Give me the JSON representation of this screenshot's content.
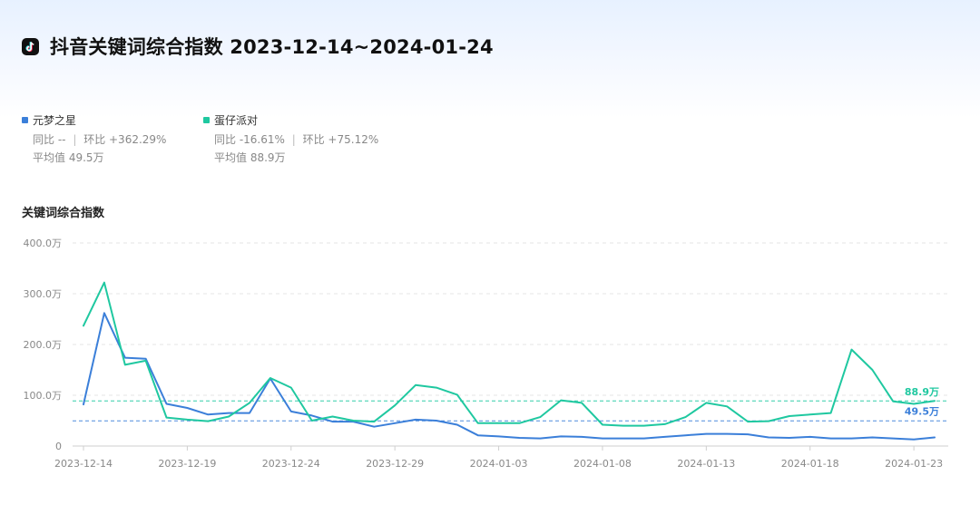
{
  "header": {
    "icon": "tiktok-logo-icon",
    "title": "抖音关键词综合指数 2023-12-14~2024-01-24"
  },
  "legend": [
    {
      "name": "元梦之星",
      "color": "#3b7fd9",
      "yoy": "同比 --",
      "mom": "环比 +362.29%",
      "avg": "平均值 49.5万"
    },
    {
      "name": "蛋仔派对",
      "color": "#1fc8a0",
      "yoy": "同比 -16.61%",
      "mom": "环比 +75.12%",
      "avg": "平均值 88.9万"
    }
  ],
  "chart_title": "关键词综合指数",
  "chart_data": {
    "type": "line",
    "ylim": [
      0,
      400
    ],
    "y_unit": "万",
    "y_ticks": [
      0,
      100,
      200,
      300,
      400
    ],
    "y_tick_labels": [
      "0",
      "100.0万",
      "200.0万",
      "300.0万",
      "400.0万"
    ],
    "x_tick_labels": [
      "2023-12-14",
      "2023-12-19",
      "2023-12-24",
      "2023-12-29",
      "2024-01-03",
      "2024-01-08",
      "2024-01-13",
      "2024-01-18",
      "2024-01-23"
    ],
    "x": [
      "2023-12-14",
      "2023-12-15",
      "2023-12-16",
      "2023-12-17",
      "2023-12-18",
      "2023-12-19",
      "2023-12-20",
      "2023-12-21",
      "2023-12-22",
      "2023-12-23",
      "2023-12-24",
      "2023-12-25",
      "2023-12-26",
      "2023-12-27",
      "2023-12-28",
      "2023-12-29",
      "2023-12-30",
      "2023-12-31",
      "2024-01-01",
      "2024-01-02",
      "2024-01-03",
      "2024-01-04",
      "2024-01-05",
      "2024-01-06",
      "2024-01-07",
      "2024-01-08",
      "2024-01-09",
      "2024-01-10",
      "2024-01-11",
      "2024-01-12",
      "2024-01-13",
      "2024-01-14",
      "2024-01-15",
      "2024-01-16",
      "2024-01-17",
      "2024-01-18",
      "2024-01-19",
      "2024-01-20",
      "2024-01-21",
      "2024-01-22",
      "2024-01-23",
      "2024-01-24"
    ],
    "series": [
      {
        "name": "元梦之星",
        "color": "#3b7fd9",
        "values": [
          82,
          262,
          174,
          172,
          83,
          75,
          62,
          65,
          65,
          133,
          68,
          60,
          48,
          48,
          38,
          45,
          52,
          50,
          42,
          21,
          19,
          16,
          15,
          19,
          18,
          15,
          15,
          15,
          18,
          21,
          24,
          24,
          23,
          17,
          16,
          18,
          15,
          15,
          17,
          15,
          13,
          17
        ],
        "average": 49.5,
        "average_label": "49.5万"
      },
      {
        "name": "蛋仔派对",
        "color": "#1fc8a0",
        "values": [
          237,
          322,
          160,
          168,
          56,
          52,
          49,
          58,
          85,
          134,
          115,
          50,
          58,
          50,
          48,
          80,
          120,
          115,
          101,
          45,
          45,
          45,
          57,
          90,
          85,
          42,
          40,
          40,
          43,
          57,
          85,
          78,
          48,
          49,
          59,
          62,
          65,
          190,
          150,
          88,
          83,
          89
        ],
        "average": 88.9,
        "average_label": "88.9万"
      }
    ]
  }
}
